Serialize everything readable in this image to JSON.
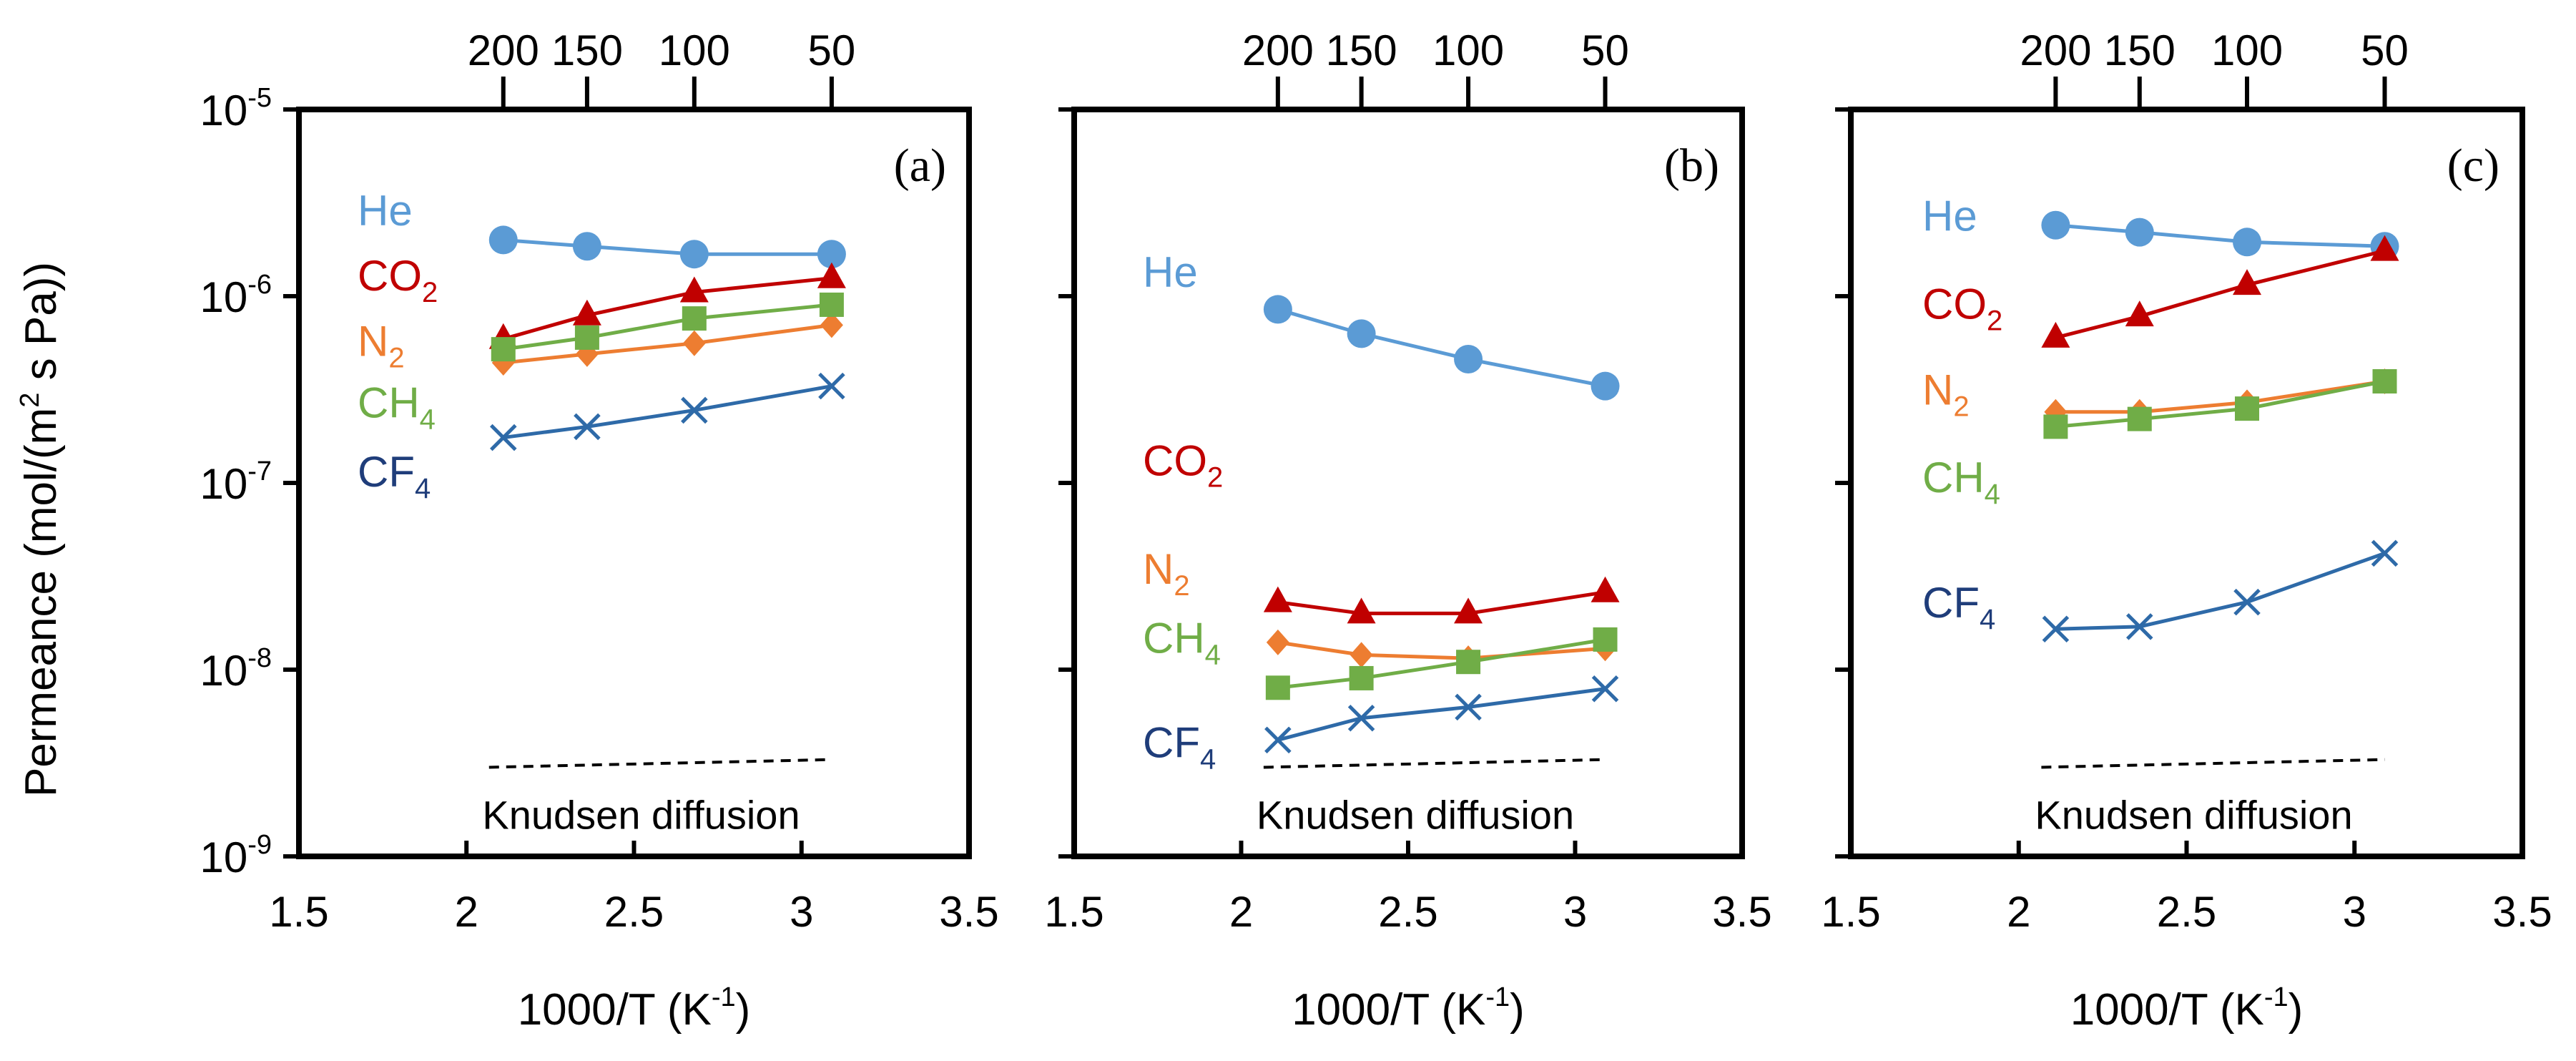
{
  "figure": {
    "ylabel": "Permeance (mol/(m",
    "ylabel_sup": "2",
    "ylabel_tail": " s Pa))",
    "xlabel": "1000/T (K",
    "xlabel_sup": "-1",
    "xlabel_tail": ")",
    "knudsen_text": "Knudsen diffusion",
    "y_ticks": [
      {
        "base": "10",
        "exp": "-5"
      },
      {
        "base": "10",
        "exp": "-6"
      },
      {
        "base": "10",
        "exp": "-7"
      },
      {
        "base": "10",
        "exp": "-8"
      },
      {
        "base": "10",
        "exp": "-9"
      }
    ],
    "x_ticks": [
      "1.5",
      "2",
      "2.5",
      "3",
      "3.5"
    ],
    "top_ticks": [
      "200",
      "150",
      "100",
      "50"
    ]
  },
  "colors": {
    "He": "#5b9bd5",
    "CO2": "#c00000",
    "N2": "#ed7d31",
    "CH4": "#70ad47",
    "CF4": "#2e6aa8",
    "CF4_label": "#1f3d7a"
  },
  "chart_data": [
    {
      "type": "line",
      "panel": "(a)",
      "xlim": [
        1.5,
        3.5
      ],
      "ylim_log10": [
        -9,
        -5
      ],
      "top_axis_temperature_C": [
        200,
        150,
        100,
        50
      ],
      "series": [
        {
          "name": "He",
          "label": "He",
          "label_sub": "",
          "marker": "circle",
          "x": [
            2.11,
            2.36,
            2.68,
            3.09
          ],
          "y": [
            2e-06,
            1.85e-06,
            1.68e-06,
            1.68e-06
          ]
        },
        {
          "name": "CO2",
          "label": "CO",
          "label_sub": "2",
          "marker": "triangle",
          "x": [
            2.11,
            2.36,
            2.68,
            3.09
          ],
          "y": [
            5.9e-07,
            7.9e-07,
            1.05e-06,
            1.25e-06
          ]
        },
        {
          "name": "N2",
          "label": "N",
          "label_sub": "2",
          "marker": "diamond",
          "x": [
            2.11,
            2.36,
            2.68,
            3.09
          ],
          "y": [
            4.4e-07,
            4.9e-07,
            5.6e-07,
            7e-07
          ]
        },
        {
          "name": "CH4",
          "label": "CH",
          "label_sub": "4",
          "marker": "square",
          "x": [
            2.11,
            2.36,
            2.68,
            3.09
          ],
          "y": [
            5.2e-07,
            6e-07,
            7.6e-07,
            9e-07
          ]
        },
        {
          "name": "CF4",
          "label": "CF",
          "label_sub": "4",
          "marker": "x",
          "x": [
            2.11,
            2.36,
            2.68,
            3.09
          ],
          "y": [
            1.75e-07,
            2e-07,
            2.45e-07,
            3.3e-07
          ]
        }
      ],
      "knudsen_line": {
        "x": [
          2.11,
          3.09
        ],
        "y": [
          3e-09,
          3.3e-09
        ]
      }
    },
    {
      "type": "line",
      "panel": "(b)",
      "xlim": [
        1.5,
        3.5
      ],
      "ylim_log10": [
        -9,
        -5
      ],
      "top_axis_temperature_C": [
        200,
        150,
        100,
        50
      ],
      "series": [
        {
          "name": "He",
          "label": "He",
          "label_sub": "",
          "marker": "circle",
          "x": [
            2.11,
            2.36,
            2.68,
            3.09
          ],
          "y": [
            8.5e-07,
            6.3e-07,
            4.6e-07,
            3.3e-07
          ]
        },
        {
          "name": "CO2",
          "label": "CO",
          "label_sub": "2",
          "marker": "triangle",
          "x": [
            2.11,
            2.36,
            2.68,
            3.09
          ],
          "y": [
            2.3e-08,
            2e-08,
            2e-08,
            2.6e-08
          ]
        },
        {
          "name": "N2",
          "label": "N",
          "label_sub": "2",
          "marker": "diamond",
          "x": [
            2.11,
            2.36,
            2.68,
            3.09
          ],
          "y": [
            1.4e-08,
            1.2e-08,
            1.15e-08,
            1.3e-08
          ]
        },
        {
          "name": "CH4",
          "label": "CH",
          "label_sub": "4",
          "marker": "square",
          "x": [
            2.11,
            2.36,
            2.68,
            3.09
          ],
          "y": [
            8e-09,
            9e-09,
            1.1e-08,
            1.45e-08
          ]
        },
        {
          "name": "CF4",
          "label": "CF",
          "label_sub": "4",
          "marker": "x",
          "x": [
            2.11,
            2.36,
            2.68,
            3.09
          ],
          "y": [
            4.2e-09,
            5.5e-09,
            6.3e-09,
            7.9e-09
          ]
        }
      ],
      "knudsen_line": {
        "x": [
          2.11,
          3.09
        ],
        "y": [
          3e-09,
          3.3e-09
        ]
      }
    },
    {
      "type": "line",
      "panel": "(c)",
      "xlim": [
        1.5,
        3.5
      ],
      "ylim_log10": [
        -9,
        -5
      ],
      "top_axis_temperature_C": [
        200,
        150,
        100,
        50
      ],
      "series": [
        {
          "name": "He",
          "label": "He",
          "label_sub": "",
          "marker": "circle",
          "x": [
            2.11,
            2.36,
            2.68,
            3.09
          ],
          "y": [
            2.4e-06,
            2.2e-06,
            1.95e-06,
            1.85e-06
          ]
        },
        {
          "name": "CO2",
          "label": "CO",
          "label_sub": "2",
          "marker": "triangle",
          "x": [
            2.11,
            2.36,
            2.68,
            3.09
          ],
          "y": [
            6e-07,
            7.8e-07,
            1.15e-06,
            1.75e-06
          ]
        },
        {
          "name": "N2",
          "label": "N",
          "label_sub": "2",
          "marker": "diamond",
          "x": [
            2.11,
            2.36,
            2.68,
            3.09
          ],
          "y": [
            2.4e-07,
            2.4e-07,
            2.7e-07,
            3.5e-07
          ]
        },
        {
          "name": "CH4",
          "label": "CH",
          "label_sub": "4",
          "marker": "square",
          "x": [
            2.11,
            2.36,
            2.68,
            3.09
          ],
          "y": [
            2e-07,
            2.2e-07,
            2.5e-07,
            3.5e-07
          ]
        },
        {
          "name": "CF4",
          "label": "CF",
          "label_sub": "4",
          "marker": "x",
          "x": [
            2.11,
            2.36,
            2.68,
            3.09
          ],
          "y": [
            1.65e-08,
            1.7e-08,
            2.3e-08,
            4.2e-08
          ]
        }
      ],
      "knudsen_line": {
        "x": [
          2.11,
          3.09
        ],
        "y": [
          3e-09,
          3.3e-09
        ]
      }
    }
  ]
}
